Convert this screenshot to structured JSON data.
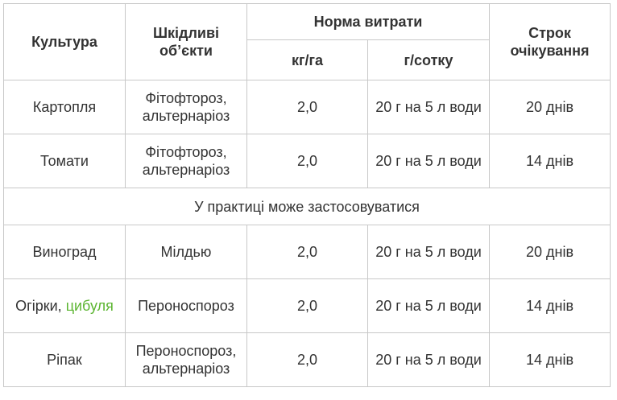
{
  "header": {
    "culture": "Культура",
    "pests": "Шкідливі об’єкти",
    "rate": "Норма витрати",
    "rate_kg": "кг/га",
    "rate_g": "г/сотку",
    "term": "Строк очікування"
  },
  "rows": [
    {
      "culture": "Картопля",
      "pests": "Фітофтороз, альтернаріоз",
      "kg": "2,0",
      "g": "20 г на 5 л води",
      "term": "20 днів"
    },
    {
      "culture": "Томати",
      "pests": "Фітофтороз, альтернаріоз",
      "kg": "2,0",
      "g": "20 г на 5 л води",
      "term": "14 днів"
    }
  ],
  "note": "У практиці може застосовуватися",
  "rows2": [
    {
      "culture": "Виноград",
      "pests": "Мілдью",
      "kg": "2,0",
      "g": "20 г на 5 л води",
      "term": "20 днів"
    },
    {
      "culture_prefix": "Огірки, ",
      "culture_link": "цибуля",
      "pests": "Пероноспороз",
      "kg": "2,0",
      "g": "20 г на 5 л води",
      "term": "14 днів"
    },
    {
      "culture": "Ріпак",
      "pests": "Пероноспороз, альтернаріоз",
      "kg": "2,0",
      "g": "20 г на 5 л води",
      "term": "14 днів"
    }
  ],
  "colors": {
    "border": "#c8c8c8",
    "text": "#333333",
    "link": "#5cb531"
  }
}
